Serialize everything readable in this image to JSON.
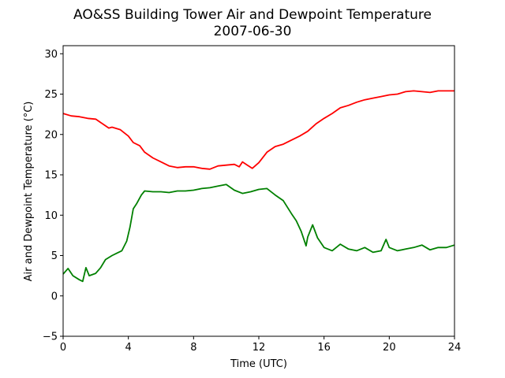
{
  "chart_data": {
    "type": "line",
    "title": "AO&SS Building Tower Air and Dewpoint Temperature",
    "subtitle": "2007-06-30",
    "xlabel": "Time (UTC)",
    "ylabel": "Air and Dewpoint Temperature (°C)",
    "xlim": [
      0,
      24
    ],
    "ylim": [
      -5,
      31
    ],
    "xticks": [
      0,
      4,
      8,
      12,
      16,
      20,
      24
    ],
    "yticks": [
      -5,
      0,
      5,
      10,
      15,
      20,
      25,
      30
    ],
    "grid": false,
    "legend": "none",
    "series": [
      {
        "color": "#ff0000",
        "x": [
          0,
          0.5,
          1,
          1.5,
          2,
          2.5,
          2.8,
          3,
          3.5,
          4,
          4.3,
          4.7,
          5,
          5.5,
          6,
          6.5,
          7,
          7.5,
          8,
          8.5,
          9,
          9.5,
          10,
          10.5,
          10.8,
          11,
          11.3,
          11.6,
          12,
          12.5,
          13,
          13.5,
          14,
          14.5,
          15,
          15.5,
          16,
          16.5,
          17,
          17.5,
          18,
          18.5,
          19,
          19.5,
          20,
          20.5,
          21,
          21.5,
          22,
          22.5,
          23,
          23.5,
          24
        ],
        "y": [
          22.6,
          22.3,
          22.2,
          22.0,
          21.9,
          21.2,
          20.8,
          20.9,
          20.6,
          19.8,
          19.0,
          18.6,
          17.8,
          17.1,
          16.6,
          16.1,
          15.9,
          16.0,
          16.0,
          15.8,
          15.7,
          16.1,
          16.2,
          16.3,
          16.0,
          16.6,
          16.2,
          15.8,
          16.5,
          17.8,
          18.5,
          18.8,
          19.3,
          19.8,
          20.4,
          21.3,
          22.0,
          22.6,
          23.3,
          23.6,
          24.0,
          24.3,
          24.5,
          24.7,
          24.9,
          25.0,
          25.3,
          25.4,
          25.3,
          25.2,
          25.4,
          25.4,
          25.4
        ]
      },
      {
        "color": "#008000",
        "x": [
          0,
          0.3,
          0.6,
          1,
          1.2,
          1.4,
          1.6,
          2,
          2.3,
          2.6,
          3,
          3.3,
          3.6,
          3.9,
          4.1,
          4.3,
          4.5,
          4.8,
          5,
          5.5,
          6,
          6.5,
          7,
          7.5,
          8,
          8.5,
          9,
          9.5,
          10,
          10.5,
          11,
          11.5,
          12,
          12.5,
          13,
          13.5,
          14,
          14.3,
          14.6,
          14.9,
          15,
          15.3,
          15.6,
          16,
          16.5,
          17,
          17.5,
          18,
          18.5,
          19,
          19.5,
          19.8,
          20,
          20.5,
          21,
          21.5,
          22,
          22.5,
          23,
          23.5,
          24
        ],
        "y": [
          2.7,
          3.4,
          2.5,
          2.0,
          1.8,
          3.5,
          2.5,
          2.8,
          3.5,
          4.5,
          5.0,
          5.3,
          5.6,
          6.8,
          8.5,
          10.8,
          11.4,
          12.5,
          13.0,
          12.9,
          12.9,
          12.8,
          13.0,
          13.0,
          13.1,
          13.3,
          13.4,
          13.6,
          13.8,
          13.1,
          12.7,
          12.9,
          13.2,
          13.3,
          12.5,
          11.8,
          10.2,
          9.3,
          8.0,
          6.2,
          7.3,
          8.8,
          7.2,
          6.0,
          5.6,
          6.4,
          5.8,
          5.6,
          6.0,
          5.4,
          5.6,
          7.0,
          6.0,
          5.6,
          5.8,
          6.0,
          6.3,
          5.7,
          6.0,
          6.0,
          6.3
        ]
      }
    ]
  }
}
